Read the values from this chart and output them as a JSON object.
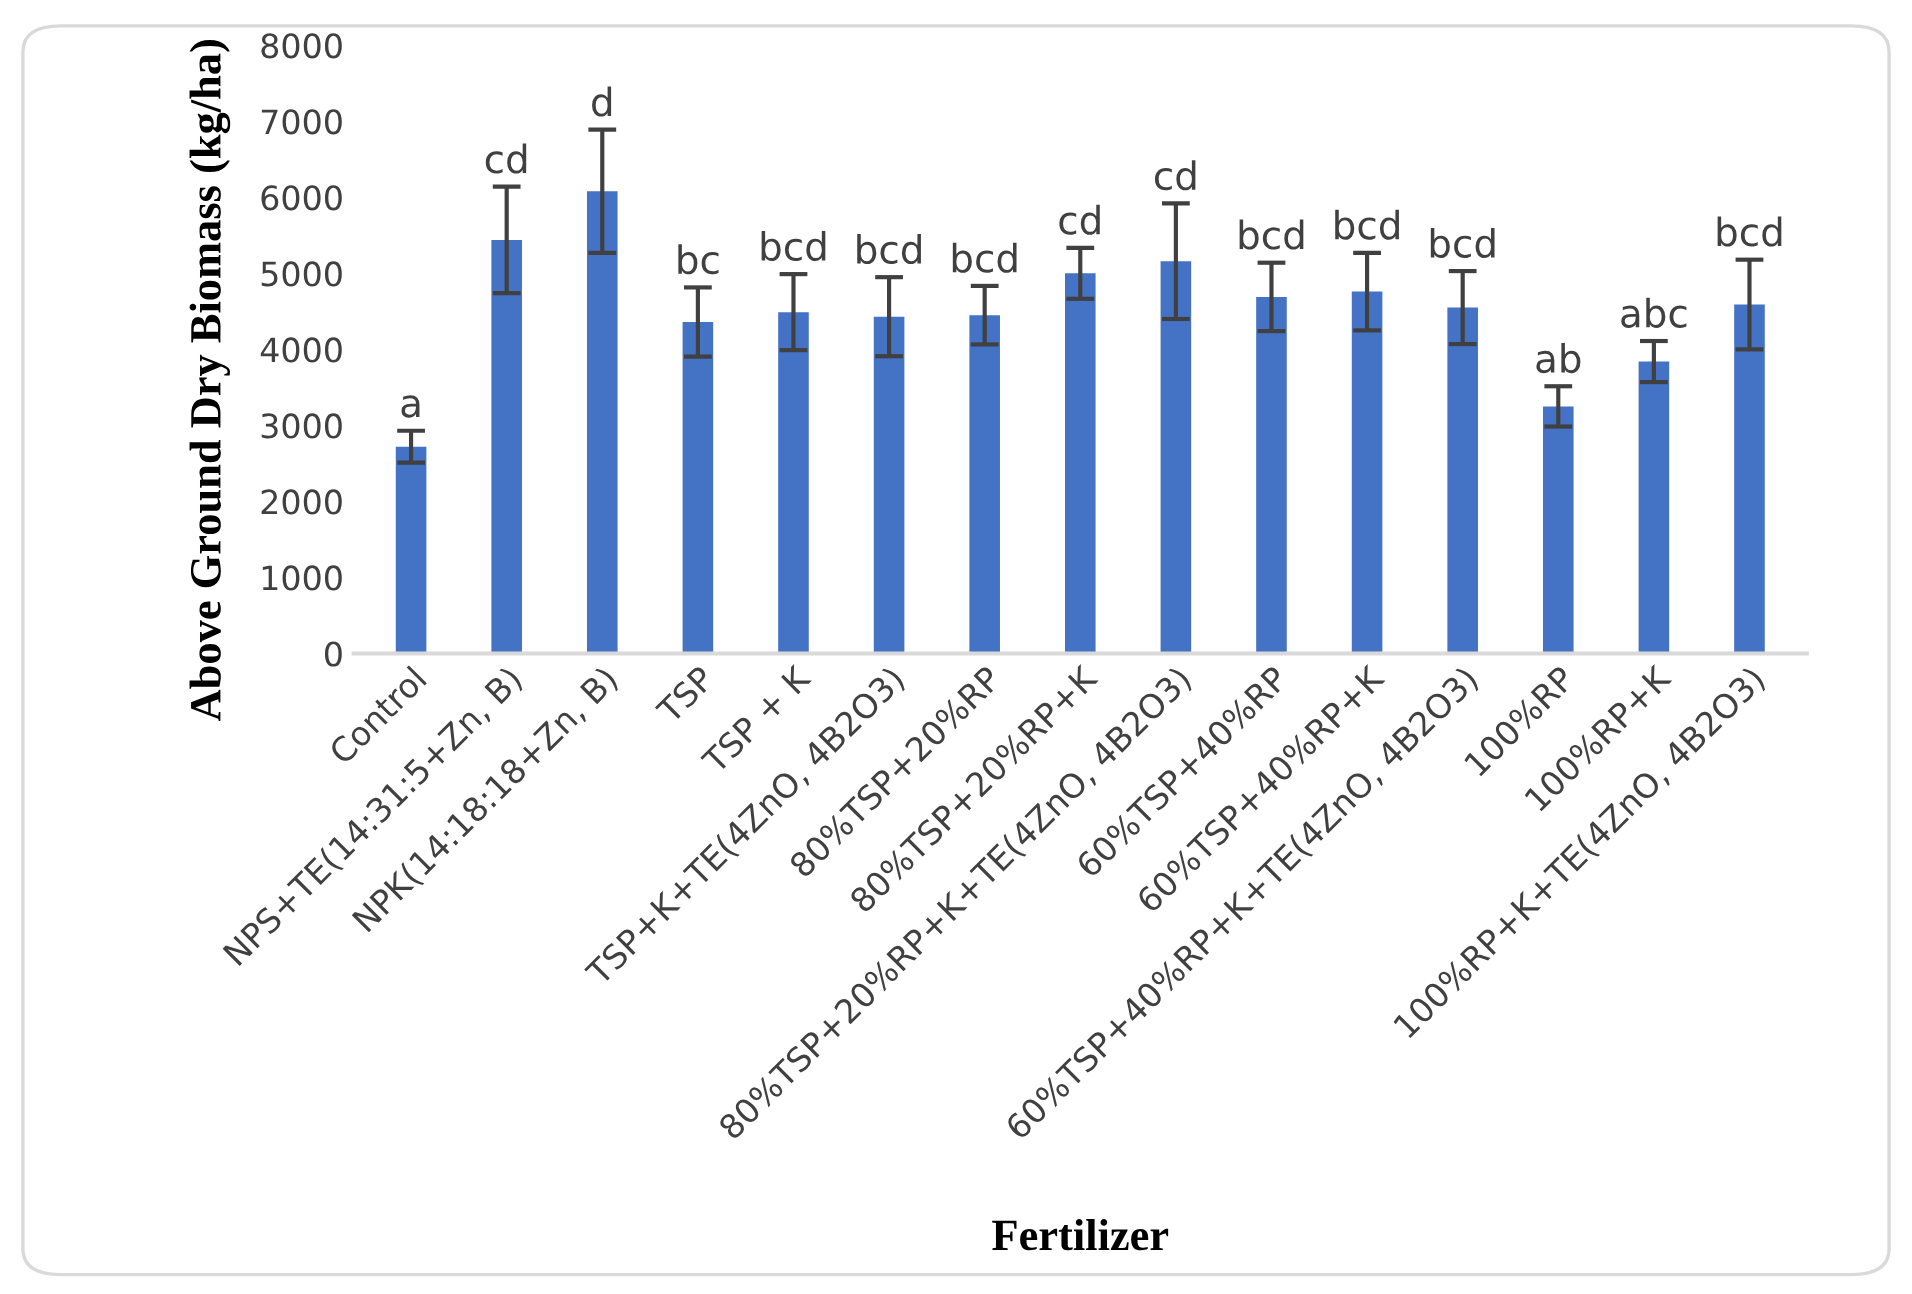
{
  "chart_data": {
    "type": "bar",
    "xlabel": "Fertilizer",
    "ylabel": "Above Ground Dry Biomass (kg/ha)",
    "categories": [
      "Control",
      "NPS+TE(14:31:5+Zn, B)",
      "NPK(14:18:18+Zn, B)",
      "TSP",
      "TSP + K",
      "TSP+K+TE(4ZnO, 4B2O3)",
      "80%TSP+20%RP",
      "80%TSP+20%RP+K",
      "80%TSP+20%RP+K+TE(4ZnO, 4B2O3)",
      "60%TSP+40%RP",
      "60%TSP+40%RP+K",
      "60%TSP+40%RP+K+TE(4ZnO, 4B2O3)",
      "100%RP",
      "100%RP+K",
      "100%RP+K+TE(4ZnO, 4B2O3)"
    ],
    "values": [
      2720,
      5440,
      6080,
      4360,
      4490,
      4430,
      4450,
      5000,
      5160,
      4690,
      4760,
      4550,
      3250,
      3840,
      4590
    ],
    "errors": [
      210,
      700,
      810,
      455,
      500,
      520,
      385,
      335,
      760,
      450,
      510,
      480,
      265,
      270,
      590
    ],
    "color": "#4472c4",
    "ylim": [
      0,
      8000
    ],
    "yticks": [
      0,
      1000,
      2000,
      3000,
      4000,
      5000,
      6000,
      7000,
      8000
    ],
    "grid": false,
    "annotations": [
      {
        "text": "a",
        "x": "Control",
        "y": 2930
      },
      {
        "text": "cd",
        "x": "NPS+TE(14:31:5+Zn, B)",
        "y": 6140
      },
      {
        "text": "d",
        "x": "NPK(14:18:18+Zn, B)",
        "y": 6890
      },
      {
        "text": "bc",
        "x": "TSP",
        "y": 4815
      },
      {
        "text": "bcd",
        "x": "TSP + K",
        "y": 4990
      },
      {
        "text": "bcd",
        "x": "TSP+K+TE(4ZnO, 4B2O3)",
        "y": 4950
      },
      {
        "text": "bcd",
        "x": "80%TSP+20%RP",
        "y": 4835
      },
      {
        "text": "cd",
        "x": "80%TSP+20%RP+K",
        "y": 5335
      },
      {
        "text": "cd",
        "x": "80%TSP+20%RP+K+TE(4ZnO, 4B2O3)",
        "y": 5920
      },
      {
        "text": "bcd",
        "x": "60%TSP+40%RP",
        "y": 5140
      },
      {
        "text": "bcd",
        "x": "60%TSP+40%RP+K",
        "y": 5270
      },
      {
        "text": "bcd",
        "x": "60%TSP+40%RP+K+TE(4ZnO, 4B2O3)",
        "y": 5030
      },
      {
        "text": "ab",
        "x": "100%RP",
        "y": 3515
      },
      {
        "text": "abc",
        "x": "100%RP+K",
        "y": 4110
      },
      {
        "text": "bcd",
        "x": "100%RP+K+TE(4ZnO, 4B2O3)",
        "y": 5180
      }
    ]
  }
}
